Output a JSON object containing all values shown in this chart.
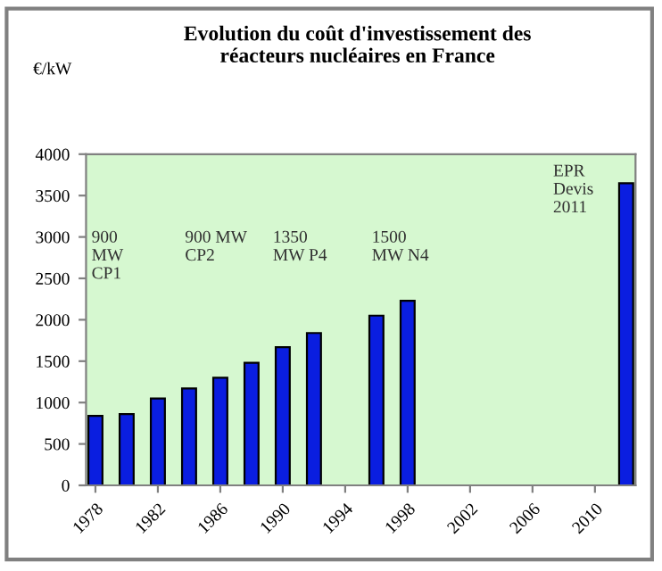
{
  "chart_data": {
    "type": "bar",
    "title": "Evolution du coût d'investissement des\nréacteurs nucléaires en France",
    "ylabel": "€/kW",
    "categories": [
      "1978",
      null,
      null,
      null,
      "1982",
      null,
      null,
      null,
      "1986",
      null,
      null,
      null,
      "1990",
      null,
      null,
      null,
      "1994",
      null,
      null,
      null,
      "1998",
      null,
      null,
      null,
      "2002",
      null,
      null,
      null,
      "2006",
      null,
      null,
      null,
      "2010",
      null,
      null
    ],
    "values": [
      840,
      null,
      860,
      null,
      1050,
      null,
      1170,
      null,
      1300,
      null,
      1480,
      null,
      1670,
      null,
      1840,
      null,
      null,
      null,
      2050,
      null,
      2230,
      null,
      null,
      null,
      null,
      null,
      null,
      null,
      null,
      null,
      null,
      null,
      null,
      null,
      3650
    ],
    "color": "#0a1ee0",
    "ylim": [
      0,
      4000
    ],
    "yticks": [
      0,
      500,
      1000,
      1500,
      2000,
      2500,
      3000,
      3500,
      4000
    ],
    "grid": false,
    "legend": false,
    "annotations": [
      "900\nMW\nCP1",
      "900 MW\nCP2",
      "1350\nMW P4",
      "1500\nMW N4",
      "EPR\nDevis\n2011"
    ]
  }
}
